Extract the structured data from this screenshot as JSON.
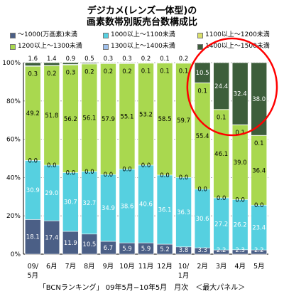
{
  "title": [
    "デジカメ(レンズ一体型)の",
    "画素数帯別販売台数構成比"
  ],
  "footer": "「BCNランキング」 09年5月−10年5月　月次　＜最大パネル＞",
  "colors": {
    "s1": "#4b5f86",
    "s2": "#56d0e0",
    "s3": "#d9df6a",
    "s4": "#a9d84f",
    "s5": "#9fc0ec",
    "s6": "#3d5e3b",
    "highlight": "#ff0000"
  },
  "chart_data": {
    "type": "bar",
    "stacked": true,
    "percent_stacked": true,
    "categories": [
      "09/\n5月",
      "6月",
      "7月",
      "8月",
      "9月",
      "10月",
      "11月",
      "12月",
      "10/\n1月",
      "2月",
      "3月",
      "4月",
      "5月"
    ],
    "series": [
      {
        "name": "〜1000(万画素)未満",
        "color_key": "s1",
        "values": [
          18.1,
          17.4,
          11.9,
          10.5,
          6.7,
          5.9,
          5.9,
          5.2,
          3.8,
          3.3,
          2.2,
          2.3,
          2.2
        ]
      },
      {
        "name": "1000以上〜1100未満",
        "color_key": "s2",
        "values": [
          30.9,
          29.0,
          30.7,
          32.7,
          34.9,
          38.6,
          40.6,
          36.1,
          36.3,
          30.6,
          27.2,
          26.2,
          23.4
        ]
      },
      {
        "name": "1100以上〜1200未満",
        "color_key": "s3",
        "values": [
          0.0,
          0.0,
          0.0,
          0.0,
          0.0,
          0.0,
          0.0,
          0.0,
          0.0,
          0.0,
          0.0,
          0.0,
          0.0
        ]
      },
      {
        "name": "1200以上〜1300未満",
        "color_key": "s4",
        "values": [
          49.2,
          51.8,
          56.2,
          56.1,
          57.9,
          55.1,
          53.2,
          58.5,
          59.7,
          55.4,
          46.1,
          39.0,
          36.4
        ]
      },
      {
        "name": "1300以上〜1400未満",
        "color_key": "s5",
        "values": [
          0.3,
          0.2,
          0.3,
          0.2,
          0.2,
          0.2,
          0.1,
          0.1,
          0.1,
          0.1,
          0.1,
          0.1,
          0.1
        ]
      },
      {
        "name": "1400以上〜1500未満",
        "color_key": "s6",
        "values": [
          1.6,
          1.4,
          0.9,
          0.5,
          0.3,
          0.3,
          0.2,
          0.1,
          0.2,
          10.5,
          24.4,
          32.4,
          38.0
        ]
      }
    ],
    "labels": [
      [
        "18.1",
        "30.9",
        "0.0",
        "49.2",
        "0.3",
        "1.6"
      ],
      [
        "17.4",
        "29.0",
        "0.0",
        "51.8",
        "0.2",
        "1.4"
      ],
      [
        "11.9",
        "30.7",
        "0.0",
        "56.2",
        "0.3",
        "0.9"
      ],
      [
        "10.5",
        "32.7",
        "0.0",
        "56.1",
        "0.2",
        "0.5"
      ],
      [
        "6.7",
        "34.9",
        "0.0",
        "57.9",
        "0.2",
        "0.3"
      ],
      [
        "5.9",
        "38.6",
        "0.0",
        "55.1",
        "0.2",
        "0.3"
      ],
      [
        "5.9",
        "40.6",
        "0.0",
        "53.2",
        "0.1",
        "0.2"
      ],
      [
        "5.2",
        "36.1",
        "0.0",
        "58.5",
        "0.1",
        "0.1"
      ],
      [
        "3.8",
        "36.3",
        "0.0",
        "59.7",
        "0.1",
        "0.2"
      ],
      [
        "3.3",
        "30.6",
        "0.0",
        "55.4",
        "0.1",
        "10.5"
      ],
      [
        "2.2",
        "27.2",
        "0.0",
        "46.1",
        "0.1",
        "24.4"
      ],
      [
        "2.3",
        "26.2",
        "0.0",
        "39.0",
        "0.1",
        "32.4"
      ],
      [
        "2.2",
        "23.4",
        "0.0",
        "36.4",
        "0.1",
        "38.0"
      ]
    ],
    "y_ticks": [
      "0%",
      "20%",
      "40%",
      "60%",
      "80%",
      "100%"
    ],
    "ylim": [
      0,
      100
    ],
    "xlabel": "",
    "ylabel": "",
    "legend_position": "top",
    "grid": true,
    "highlight_categories": [
      "2月",
      "3月",
      "4月",
      "5月"
    ]
  }
}
